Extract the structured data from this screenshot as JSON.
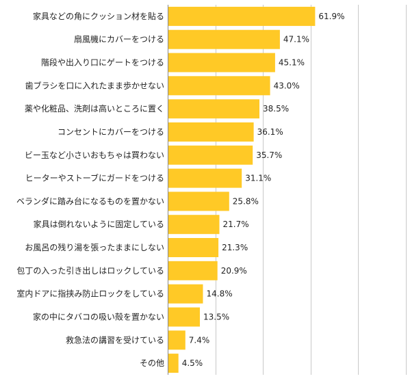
{
  "chart_data": {
    "type": "bar",
    "orientation": "horizontal",
    "categories": [
      "家具などの角にクッション材を貼る",
      "扇風機にカバーをつける",
      "階段や出入り口にゲートをつける",
      "歯ブラシを口に入れたまま歩かせない",
      "薬や化粧品、洗剤は高いところに置く",
      "コンセントにカバーをつける",
      "ビー玉など小さいおもちゃは買わない",
      "ヒーターやストーブにガードをつける",
      "ベランダに踏み台になるものを置かない",
      "家具は倒れないように固定している",
      "お風呂の残り湯を張ったままにしない",
      "包丁の入った引き出しはロックしている",
      "室内ドアに指挟み防止ロックをしている",
      "家の中にタバコの吸い殻を置かない",
      "救急法の講習を受けている",
      "その他"
    ],
    "values": [
      61.9,
      47.1,
      45.1,
      43.0,
      38.5,
      36.1,
      35.7,
      31.1,
      25.8,
      21.7,
      21.3,
      20.9,
      14.8,
      13.5,
      7.4,
      4.5
    ],
    "value_labels": [
      "61.9%",
      "47.1%",
      "45.1%",
      "43.0%",
      "38.5%",
      "36.1%",
      "35.7%",
      "31.1%",
      "25.8%",
      "21.7%",
      "21.3%",
      "20.9%",
      "14.8%",
      "13.5%",
      "7.4%",
      "4.5%"
    ],
    "xlim": [
      0,
      100
    ],
    "grid": true,
    "legend": "none",
    "colors": {
      "bar": "#FFC926",
      "grid": "#C8C8C8",
      "axis": "#888888"
    }
  }
}
